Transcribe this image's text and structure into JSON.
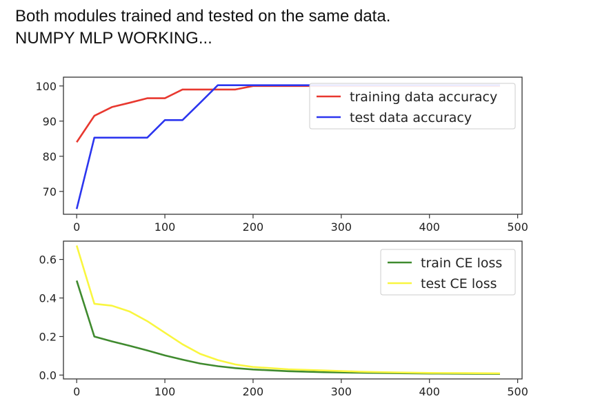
{
  "output": {
    "line1": "Both modules trained and tested on the same data.",
    "line2": "NUMPY MLP WORKING..."
  },
  "chart_data": [
    {
      "type": "line",
      "title": "",
      "xlabel": "",
      "ylabel": "",
      "xlim": [
        -15,
        505
      ],
      "ylim": [
        63.5,
        102.5
      ],
      "xticks": [
        0,
        100,
        200,
        300,
        400,
        500
      ],
      "yticks": [
        70,
        80,
        90,
        100
      ],
      "legend_position": "top-right",
      "series": [
        {
          "name": "training data accuracy",
          "color": "#e8382f",
          "x": [
            0,
            20,
            40,
            60,
            80,
            100,
            120,
            140,
            160,
            180,
            200,
            220,
            240,
            260,
            280,
            300,
            320,
            340,
            360,
            380,
            400,
            420,
            440,
            460,
            480
          ],
          "y": [
            84,
            91.5,
            94,
            95.2,
            96.5,
            96.5,
            99,
            99,
            99,
            99,
            100,
            100,
            100,
            100,
            100,
            100,
            100,
            100,
            100,
            100,
            100,
            100,
            100,
            100,
            100
          ]
        },
        {
          "name": "test data accuracy",
          "color": "#2b35ef",
          "x": [
            0,
            20,
            40,
            60,
            80,
            100,
            120,
            140,
            160,
            180,
            200,
            220,
            240,
            260,
            280,
            300,
            320,
            340,
            360,
            380,
            400,
            420,
            440,
            460,
            480
          ],
          "y": [
            65,
            85.3,
            85.3,
            85.3,
            85.3,
            90.3,
            90.3,
            95.2,
            100.2,
            100.2,
            100.2,
            100.2,
            100.2,
            100.2,
            100.2,
            100.2,
            100.2,
            100.2,
            100.2,
            100.2,
            100.2,
            100.2,
            100.2,
            100.2,
            100.2
          ]
        }
      ]
    },
    {
      "type": "line",
      "title": "",
      "xlabel": "",
      "ylabel": "",
      "xlim": [
        -15,
        505
      ],
      "ylim": [
        -0.02,
        0.695
      ],
      "xticks": [
        0,
        100,
        200,
        300,
        400,
        500
      ],
      "yticks": [
        0.0,
        0.2,
        0.4,
        0.6
      ],
      "ytick_labels": [
        "0.0",
        "0.2",
        "0.4",
        "0.6"
      ],
      "legend_position": "top-right",
      "series": [
        {
          "name": "train CE loss",
          "color": "#3f8a2e",
          "x": [
            0,
            20,
            40,
            60,
            80,
            100,
            120,
            140,
            160,
            180,
            200,
            240,
            280,
            320,
            360,
            400,
            440,
            480
          ],
          "y": [
            0.49,
            0.2,
            0.175,
            0.152,
            0.128,
            0.102,
            0.08,
            0.06,
            0.046,
            0.036,
            0.029,
            0.02,
            0.015,
            0.012,
            0.01,
            0.008,
            0.007,
            0.006
          ]
        },
        {
          "name": "test CE loss",
          "color": "#f9f63f",
          "x": [
            0,
            20,
            40,
            60,
            80,
            100,
            120,
            140,
            160,
            180,
            200,
            240,
            280,
            320,
            360,
            400,
            440,
            480
          ],
          "y": [
            0.672,
            0.37,
            0.36,
            0.33,
            0.28,
            0.22,
            0.16,
            0.11,
            0.078,
            0.055,
            0.042,
            0.03,
            0.024,
            0.018,
            0.014,
            0.011,
            0.01,
            0.009
          ]
        }
      ]
    }
  ]
}
